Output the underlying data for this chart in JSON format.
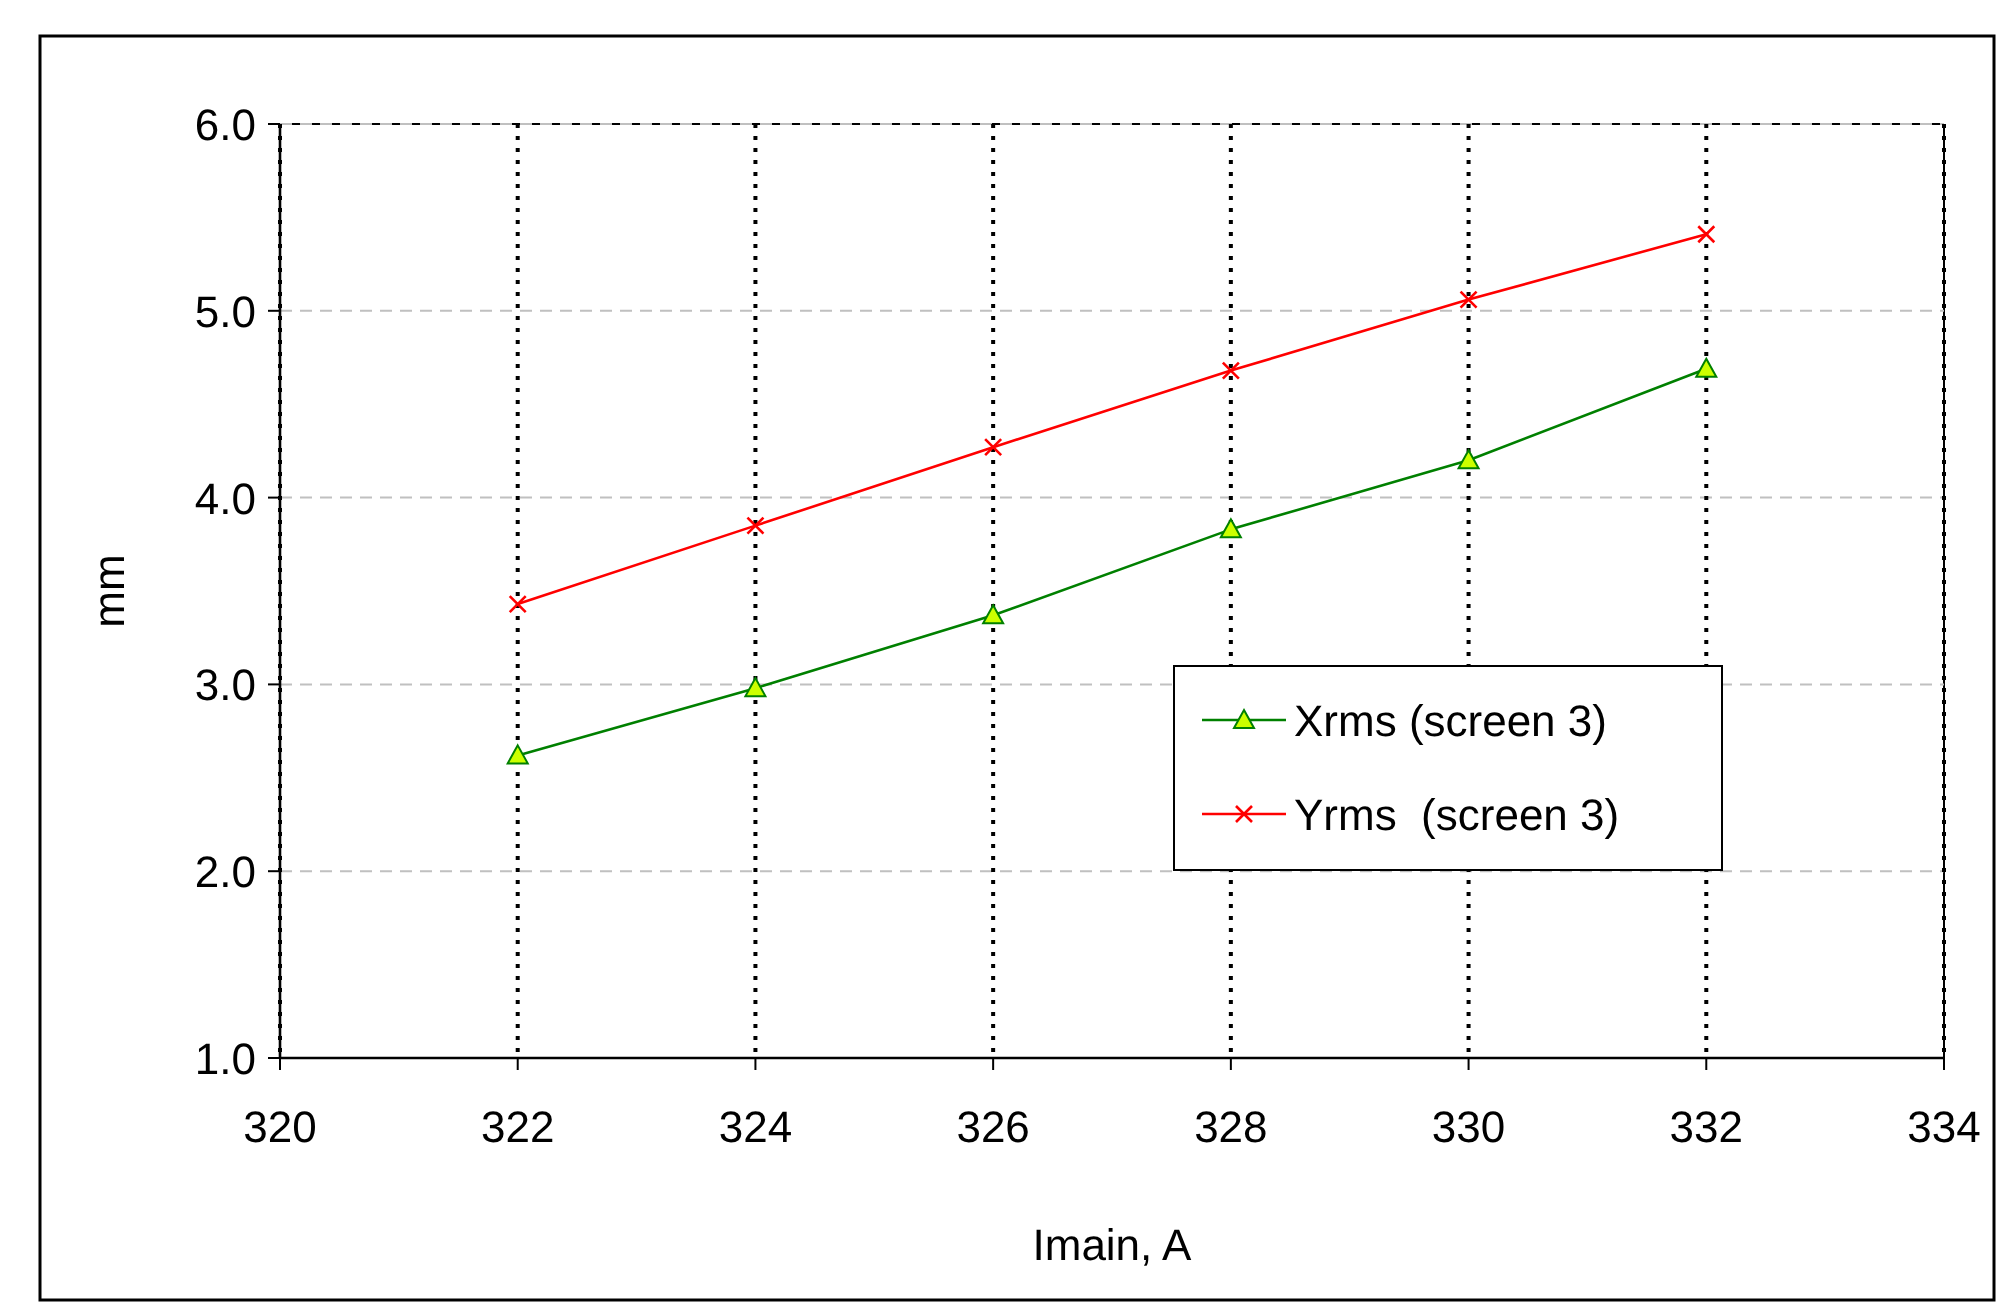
{
  "chart_data": {
    "type": "line",
    "xlabel": "Imain, A",
    "ylabel": "mm",
    "x": [
      322,
      324,
      326,
      328,
      330,
      332
    ],
    "series": [
      {
        "name": "Xrms (screen 3)",
        "color": "#008000",
        "marker": "triangle",
        "values": [
          2.62,
          2.98,
          3.37,
          3.83,
          4.2,
          4.69
        ]
      },
      {
        "name": "Yrms  (screen 3)",
        "color": "#ff0000",
        "marker": "cross",
        "values": [
          3.43,
          3.85,
          4.27,
          4.68,
          5.06,
          5.41
        ]
      }
    ],
    "xlim": [
      320,
      334
    ],
    "xticks": [
      320,
      322,
      324,
      326,
      328,
      330,
      332,
      334
    ],
    "ylim": [
      1.0,
      6.0
    ],
    "yticks": [
      {
        "value": 1,
        "label": "1.0"
      },
      {
        "value": 2,
        "label": "2.0"
      },
      {
        "value": 3,
        "label": "3.0"
      },
      {
        "value": 4,
        "label": "4.0"
      },
      {
        "value": 5,
        "label": "5.0"
      },
      {
        "value": 6,
        "label": "6.0"
      }
    ],
    "grid": true,
    "legend": "right",
    "line_style": "solid"
  }
}
